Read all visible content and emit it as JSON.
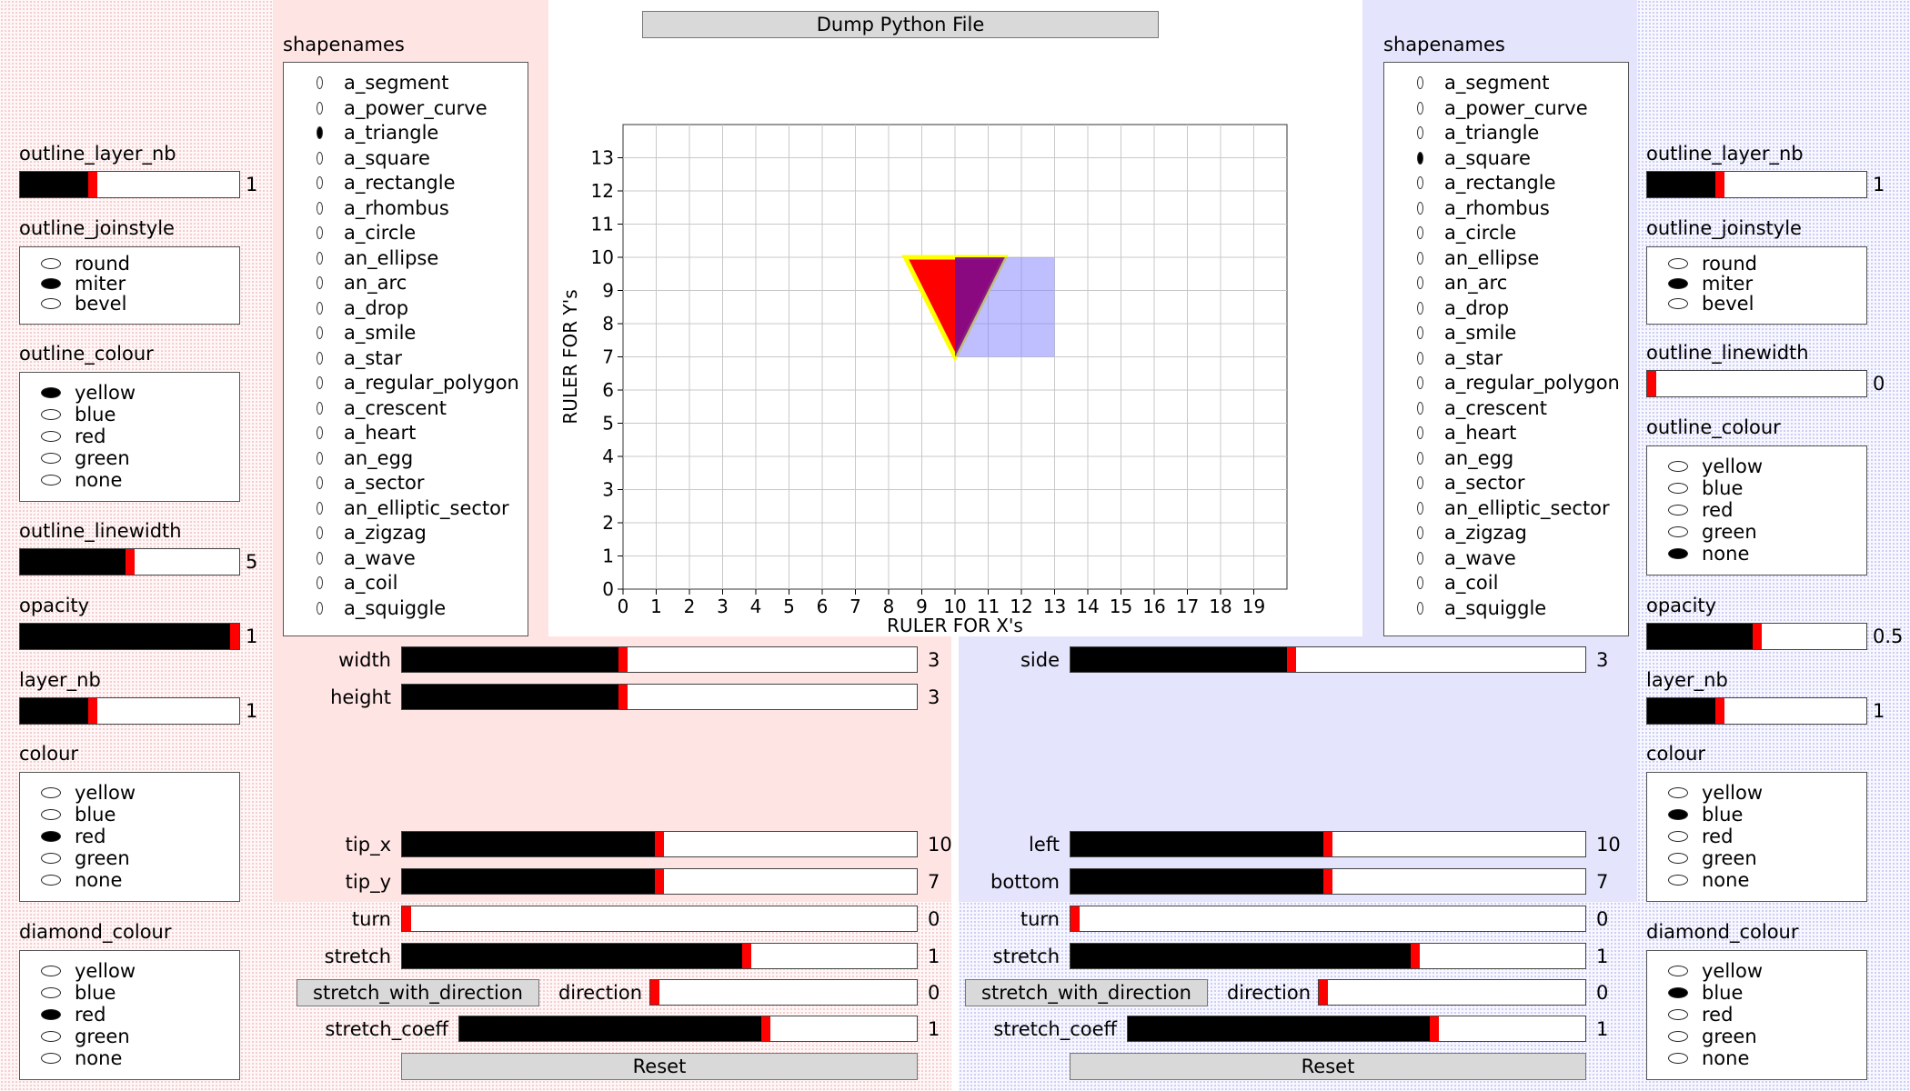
{
  "toolbar": {
    "dump_label": "Dump Python File"
  },
  "shapenames_title": "shapenames",
  "shape_names": [
    "a_segment",
    "a_power_curve",
    "a_triangle",
    "a_square",
    "a_rectangle",
    "a_rhombus",
    "a_circle",
    "an_ellipse",
    "an_arc",
    "a_drop",
    "a_smile",
    "a_star",
    "a_regular_polygon",
    "a_crescent",
    "a_heart",
    "an_egg",
    "a_sector",
    "an_elliptic_sector",
    "a_zigzag",
    "a_wave",
    "a_coil",
    "a_squiggle"
  ],
  "left_list": {
    "selected": "a_triangle"
  },
  "right_list": {
    "selected": "a_square"
  },
  "plot": {
    "xlabel": "RULER FOR X's",
    "ylabel": "RULER FOR Y's",
    "xticks": [
      "0",
      "1",
      "2",
      "3",
      "4",
      "5",
      "6",
      "7",
      "8",
      "9",
      "10",
      "11",
      "12",
      "13",
      "14",
      "15",
      "16",
      "17",
      "18",
      "19"
    ],
    "yticks": [
      "0",
      "1",
      "2",
      "3",
      "4",
      "5",
      "6",
      "7",
      "8",
      "9",
      "10",
      "11",
      "12",
      "13"
    ],
    "xlim": [
      0,
      20
    ],
    "ylim": [
      0,
      14
    ],
    "grid": true
  },
  "chart_data": {
    "type": "scatter",
    "xlabel": "RULER FOR X's",
    "ylabel": "RULER FOR Y's",
    "xlim": [
      0,
      20
    ],
    "ylim": [
      0,
      14
    ],
    "grid": true,
    "shapes": [
      {
        "kind": "a_square",
        "left": 10,
        "bottom": 7,
        "side": 3,
        "fill": "#8080ff"
      },
      {
        "kind": "a_triangle",
        "tip_x": 10,
        "tip_y": 7,
        "width": 3,
        "height": 3,
        "fill": "#ff0000",
        "outline": "#ffff00",
        "outline_width": 5
      }
    ]
  },
  "left_panel": {
    "outline_layer_nb": {
      "label": "outline_layer_nb",
      "value": "1",
      "fraction": 0.33
    },
    "outline_joinstyle": {
      "label": "outline_joinstyle",
      "options": [
        "round",
        "miter",
        "bevel"
      ],
      "selected": 1
    },
    "outline_colour": {
      "label": "outline_colour",
      "options": [
        "yellow",
        "blue",
        "red",
        "green",
        "none"
      ],
      "selected": 0
    },
    "outline_linewidth": {
      "label": "outline_linewidth",
      "value": "5",
      "fraction": 0.5
    },
    "opacity": {
      "label": "opacity",
      "value": "1",
      "fraction": 1.0
    },
    "layer_nb": {
      "label": "layer_nb",
      "value": "1",
      "fraction": 0.33
    },
    "colour": {
      "label": "colour",
      "options": [
        "yellow",
        "blue",
        "red",
        "green",
        "none"
      ],
      "selected": 2
    },
    "diamond_colour": {
      "label": "diamond_colour",
      "options": [
        "yellow",
        "blue",
        "red",
        "green",
        "none"
      ],
      "selected": 2
    }
  },
  "right_panel": {
    "outline_layer_nb": {
      "label": "outline_layer_nb",
      "value": "1",
      "fraction": 0.33
    },
    "outline_joinstyle": {
      "label": "outline_joinstyle",
      "options": [
        "round",
        "miter",
        "bevel"
      ],
      "selected": 1
    },
    "outline_linewidth": {
      "label": "outline_linewidth",
      "value": "0",
      "fraction": 0.0
    },
    "outline_colour": {
      "label": "outline_colour",
      "options": [
        "yellow",
        "blue",
        "red",
        "green",
        "none"
      ],
      "selected": 4
    },
    "opacity": {
      "label": "opacity",
      "value": "0.5",
      "fraction": 0.5
    },
    "layer_nb": {
      "label": "layer_nb",
      "value": "1",
      "fraction": 0.33
    },
    "colour": {
      "label": "colour",
      "options": [
        "yellow",
        "blue",
        "red",
        "green",
        "none"
      ],
      "selected": 1
    },
    "diamond_colour": {
      "label": "diamond_colour",
      "options": [
        "yellow",
        "blue",
        "red",
        "green",
        "none"
      ],
      "selected": 1
    }
  },
  "left_params": {
    "width": {
      "label": "width",
      "value": "3",
      "fraction": 0.43
    },
    "height": {
      "label": "height",
      "value": "3",
      "fraction": 0.43
    },
    "tip_x": {
      "label": "tip_x",
      "value": "10",
      "fraction": 0.5
    },
    "tip_y": {
      "label": "tip_y",
      "value": "7",
      "fraction": 0.5
    },
    "turn": {
      "label": "turn",
      "value": "0",
      "fraction": 0.0
    },
    "stretch": {
      "label": "stretch",
      "value": "1",
      "fraction": 0.67
    },
    "stretch_button": "stretch_with_direction",
    "direction": {
      "label": "direction",
      "value": "0",
      "fraction": 0.0
    },
    "stretch_coeff": {
      "label": "stretch_coeff",
      "value": "1",
      "fraction": 0.67
    },
    "reset_label": "Reset"
  },
  "right_params": {
    "side": {
      "label": "side",
      "value": "3",
      "fraction": 0.43
    },
    "left": {
      "label": "left",
      "value": "10",
      "fraction": 0.5
    },
    "bottom": {
      "label": "bottom",
      "value": "7",
      "fraction": 0.5
    },
    "turn": {
      "label": "turn",
      "value": "0",
      "fraction": 0.0
    },
    "stretch": {
      "label": "stretch",
      "value": "1",
      "fraction": 0.67
    },
    "stretch_button": "stretch_with_direction",
    "direction": {
      "label": "direction",
      "value": "0",
      "fraction": 0.0
    },
    "stretch_coeff": {
      "label": "stretch_coeff",
      "value": "1",
      "fraction": 0.67
    },
    "reset_label": "Reset"
  },
  "colors": {
    "knob": "#ff0000",
    "square_fill": "#8080ff",
    "triangle_fill": "#ff0000",
    "triangle_outline": "#ffff00",
    "overlap": "#800080"
  }
}
